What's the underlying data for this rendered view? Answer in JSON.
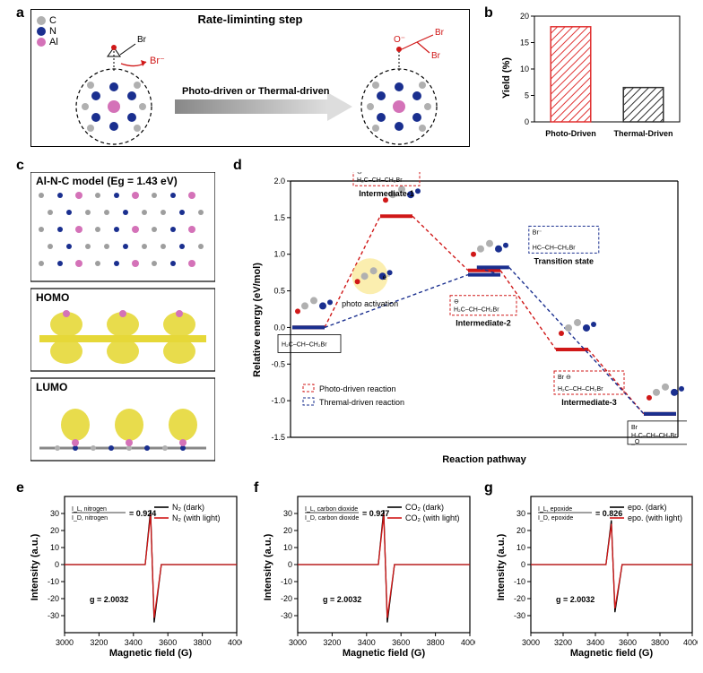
{
  "panel_a": {
    "title": "Rate-liminting step",
    "title_fontsize": 13,
    "legend": {
      "items": [
        {
          "label": "C",
          "color": "#b0b0b0"
        },
        {
          "label": "N",
          "color": "#1a2f8f"
        },
        {
          "label": "Al",
          "color": "#d472b8"
        }
      ],
      "fontsize": 11
    },
    "arrow_label": "Photo-driven or Thermal-driven",
    "arrow_fontsize": 11,
    "arrow_gradient_start": "#888888",
    "arrow_gradient_end": "#dddddd",
    "atom_labels": {
      "Br": "Br",
      "Br_neg": "Br⁻",
      "O_neg": "O⁻"
    },
    "border_color": "#000000",
    "background": "#ffffff"
  },
  "panel_b": {
    "type": "bar",
    "ylabel": "Yield (%)",
    "label_fontsize": 11,
    "categories": [
      "Photo-Driven",
      "Thermal-Driven"
    ],
    "values": [
      18,
      6.5
    ],
    "bar_colors": [
      "#e03030",
      "#303030"
    ],
    "bar_fill": "hatch",
    "ylim": [
      0,
      20
    ],
    "ytick_step": 5,
    "bar_width": 0.55,
    "background": "#ffffff",
    "tick_fontsize": 9,
    "category_fontsize": 9
  },
  "panel_c": {
    "top_label": "Al-N-C model (Eg = 1.43 eV)",
    "homo_label": "HOMO",
    "lumo_label": "LUMO",
    "label_fontsize": 12,
    "bg_structure_colors": {
      "c": "#9e9e9e",
      "n": "#2a3ba0",
      "al": "#d472b8"
    },
    "orbital_color": "#e6d838",
    "background": "#ffffff",
    "border_color": "#000000"
  },
  "panel_d": {
    "type": "line",
    "xlabel": "Reaction pathway",
    "ylabel": "Relative energy (eV/mol)",
    "label_fontsize": 11,
    "ylim": [
      -1.5,
      2.0
    ],
    "ytick_step": 0.5,
    "series": {
      "photo": {
        "label": "Photo-driven reaction",
        "color": "#d01818",
        "dash": "4 3",
        "line_width": 1.4,
        "x": [
          0,
          1,
          2,
          3,
          4
        ],
        "y": [
          0.0,
          1.52,
          0.78,
          -0.3,
          -1.18
        ]
      },
      "thermal": {
        "label": "Thremal-driven reaction",
        "color": "#1a2f8f",
        "dash": "4 3",
        "line_width": 1.4,
        "x": [
          0,
          2,
          2.1,
          4
        ],
        "y": [
          0.0,
          0.72,
          0.82,
          -1.18
        ]
      }
    },
    "level_linewidth": 4,
    "state_labels": {
      "intermediate1": "Intermediate-1",
      "intermediate2": "Intermediate-2",
      "intermediate3": "Intermediate-3",
      "transition": "Transition state",
      "photo_activation": "photo activation"
    },
    "molecule_formula_1": "H₂C–CH–CH₂Br",
    "molecule_formula_2": "H₂C–CH–CH₂Br",
    "molecule_formula_3": "H₂C–CH–CH₂Br",
    "molecule_formula_ts": "HC–CH–CH₂Br",
    "molecule_formula_prod": "H₂C–CH–CH₂Br",
    "box_br": "Br",
    "box_o": "O",
    "box_border_photo": "#d01818",
    "box_border_thermal": "#1a2f8f",
    "tick_fontsize": 9,
    "annotation_fontsize": 9
  },
  "panel_e": {
    "type": "line",
    "xlabel": "Magnetic field (G)",
    "ylabel": "Intensity (a.u.)",
    "xlim": [
      3000,
      4000
    ],
    "xtick_step": 200,
    "ylim": [
      -40,
      40
    ],
    "ytick_step": 10,
    "series": [
      {
        "label": "N₂ (dark)",
        "color": "#000000",
        "line_width": 1.3
      },
      {
        "label": "N₂ (with light)",
        "color": "#d01818",
        "line_width": 1.3
      }
    ],
    "ratio_label": "I_L, nitrogen / I_D, nitrogen",
    "ratio_value": "0.924",
    "g_label": "g = 2.0032",
    "peak_x": 3510,
    "peak_up": 32,
    "peak_down": -34,
    "label_fontsize": 11,
    "tick_fontsize": 9,
    "legend_fontsize": 9
  },
  "panel_f": {
    "type": "line",
    "xlabel": "Magnetic field (G)",
    "ylabel": "Intensity (a.u.)",
    "xlim": [
      3000,
      4000
    ],
    "xtick_step": 200,
    "ylim": [
      -40,
      40
    ],
    "ytick_step": 10,
    "series": [
      {
        "label": "CO₂ (dark)",
        "color": "#000000",
        "line_width": 1.3
      },
      {
        "label": "CO₂ (with light)",
        "color": "#d01818",
        "line_width": 1.3
      }
    ],
    "ratio_label": "I_L, carbon dioxide / I_D, carbon dioxide",
    "ratio_value": "0.927",
    "g_label": "g = 2.0032",
    "peak_x": 3510,
    "peak_up": 32,
    "peak_down": -34,
    "label_fontsize": 11,
    "tick_fontsize": 9,
    "legend_fontsize": 9
  },
  "panel_g": {
    "type": "line",
    "xlabel": "Magnetic field (G)",
    "ylabel": "Intensity (a.u.)",
    "xlim": [
      3000,
      4000
    ],
    "xtick_step": 200,
    "ylim": [
      -40,
      40
    ],
    "ytick_step": 10,
    "series": [
      {
        "label": "epo. (dark)",
        "color": "#000000",
        "line_width": 1.3
      },
      {
        "label": "epo. (with light)",
        "color": "#d01818",
        "line_width": 1.3
      }
    ],
    "ratio_label": "I_L, epoxide / I_D, epoxide",
    "ratio_value": "0.826",
    "g_label": "g = 2.0032",
    "peak_x": 3510,
    "peak_up": 26,
    "peak_down": -28,
    "label_fontsize": 11,
    "tick_fontsize": 9,
    "legend_fontsize": 9
  },
  "layout": {
    "figure_bg": "#ffffff"
  }
}
